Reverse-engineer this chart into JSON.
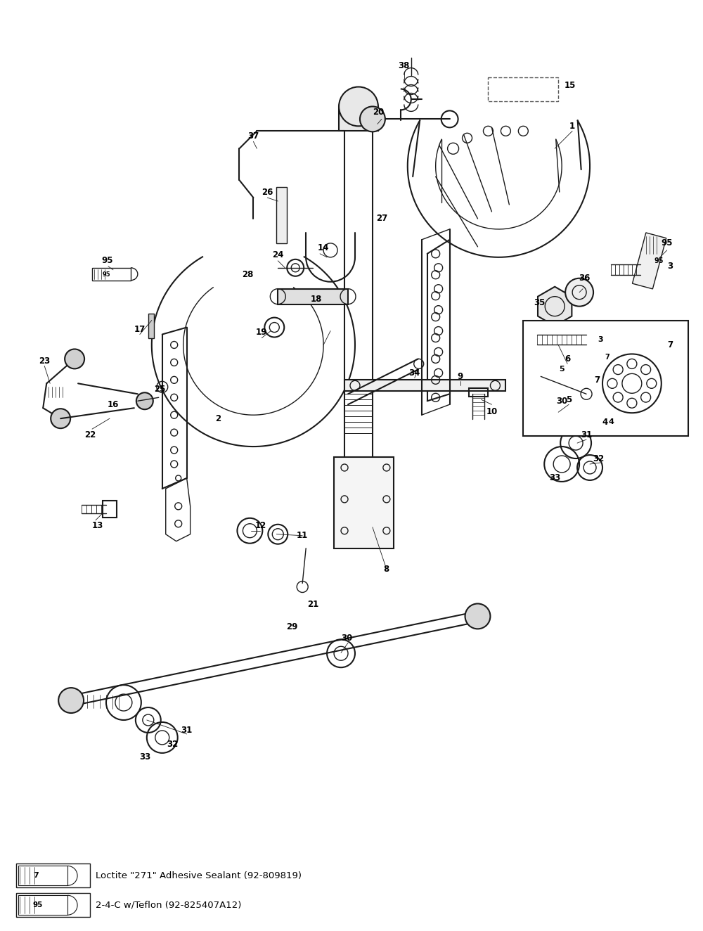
{
  "bg_color": "#ffffff",
  "line_color": "#1a1a1a",
  "fig_width": 10.0,
  "fig_height": 13.24,
  "legend_items": [
    {
      "num": "7",
      "text": "Loctite \"271\" Adhesive Sealant (92-809819)"
    },
    {
      "num": "95",
      "text": "2-4-C w/Teflon (92-825407A12)"
    }
  ]
}
